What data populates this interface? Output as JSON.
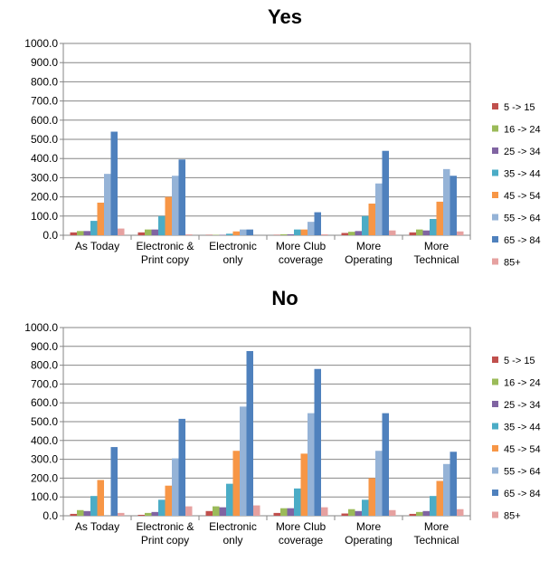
{
  "chart_data": [
    {
      "type": "bar",
      "title": "Yes",
      "categories": [
        [
          "As Today"
        ],
        [
          "Electronic &",
          "Print copy"
        ],
        [
          "Electronic",
          "only"
        ],
        [
          "More Club",
          "coverage"
        ],
        [
          "More",
          "Operating"
        ],
        [
          "More",
          "Technical"
        ]
      ],
      "ylim": [
        0,
        1000
      ],
      "yticks": [
        "0.0",
        "100.0",
        "200.0",
        "300.0",
        "400.0",
        "500.0",
        "600.0",
        "700.0",
        "800.0",
        "900.0",
        "1000.0"
      ],
      "grid": true,
      "legend_position": "right",
      "series": [
        {
          "name": "5 -> 15",
          "color": "#c0504d",
          "values": [
            15,
            15,
            2,
            2,
            12,
            15
          ]
        },
        {
          "name": "16 -> 24",
          "color": "#9bbb59",
          "values": [
            22,
            30,
            2,
            5,
            18,
            30
          ]
        },
        {
          "name": "25 -> 34",
          "color": "#8064a2",
          "values": [
            22,
            30,
            2,
            5,
            22,
            25
          ]
        },
        {
          "name": "35 -> 44",
          "color": "#4bacc6",
          "values": [
            75,
            100,
            8,
            30,
            100,
            85
          ]
        },
        {
          "name": "45 -> 54",
          "color": "#f79646",
          "values": [
            170,
            200,
            20,
            30,
            165,
            175
          ]
        },
        {
          "name": "55 -> 64",
          "color": "#95b3d7",
          "values": [
            320,
            310,
            30,
            70,
            270,
            345
          ]
        },
        {
          "name": "65 -> 84",
          "color": "#4f81bd",
          "values": [
            540,
            395,
            30,
            120,
            440,
            310
          ]
        },
        {
          "name": "85+",
          "color": "#e6a1a0",
          "values": [
            35,
            5,
            0,
            5,
            25,
            20
          ]
        }
      ]
    },
    {
      "type": "bar",
      "title": "No",
      "categories": [
        [
          "As Today"
        ],
        [
          "Electronic &",
          "Print copy"
        ],
        [
          "Electronic",
          "only"
        ],
        [
          "More Club",
          "coverage"
        ],
        [
          "More",
          "Operating"
        ],
        [
          "More",
          "Technical"
        ]
      ],
      "ylim": [
        0,
        1000
      ],
      "yticks": [
        "0.0",
        "100.0",
        "200.0",
        "300.0",
        "400.0",
        "500.0",
        "600.0",
        "700.0",
        "800.0",
        "900.0",
        "1000.0"
      ],
      "grid": true,
      "legend_position": "right",
      "series": [
        {
          "name": "5 -> 15",
          "color": "#c0504d",
          "values": [
            10,
            5,
            25,
            15,
            12,
            10
          ]
        },
        {
          "name": "16 -> 24",
          "color": "#9bbb59",
          "values": [
            30,
            15,
            50,
            40,
            35,
            20
          ]
        },
        {
          "name": "25 -> 34",
          "color": "#8064a2",
          "values": [
            25,
            20,
            45,
            40,
            25,
            25
          ]
        },
        {
          "name": "35 -> 44",
          "color": "#4bacc6",
          "values": [
            105,
            85,
            170,
            145,
            85,
            105
          ]
        },
        {
          "name": "45 -> 54",
          "color": "#f79646",
          "values": [
            190,
            160,
            345,
            330,
            200,
            185
          ]
        },
        {
          "name": "55 -> 64",
          "color": "#95b3d7",
          "values": [
            0,
            305,
            580,
            545,
            345,
            275
          ]
        },
        {
          "name": "65 -> 84",
          "color": "#4f81bd",
          "values": [
            365,
            515,
            875,
            780,
            545,
            340
          ]
        },
        {
          "name": "85+",
          "color": "#e6a1a0",
          "values": [
            15,
            50,
            55,
            45,
            30,
            35
          ]
        }
      ]
    }
  ]
}
